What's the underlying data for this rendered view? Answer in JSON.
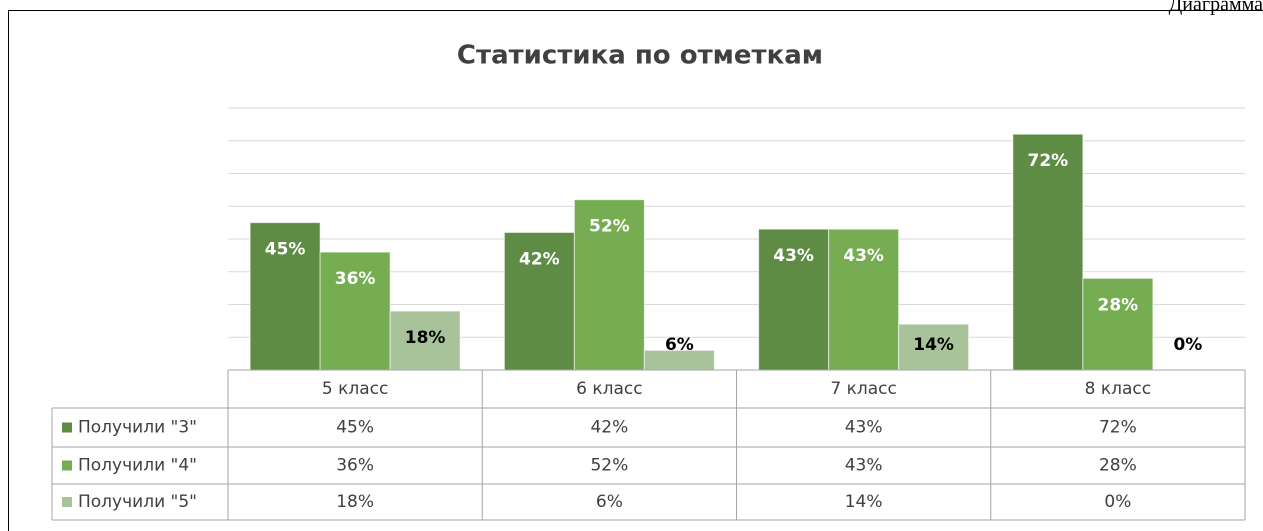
{
  "caption": "Диаграмма",
  "chart_data": {
    "type": "bar",
    "title": "Статистика по отметкам",
    "categories": [
      "5 класс",
      "6 класс",
      "7 класс",
      "8 класс"
    ],
    "series": [
      {
        "name": "Получили \"3\"",
        "color": "#5e8c45",
        "values": [
          45,
          42,
          43,
          72
        ],
        "value_labels": [
          "45%",
          "42%",
          "43%",
          "72%"
        ]
      },
      {
        "name": "Получили \"4\"",
        "color": "#76ad52",
        "values": [
          36,
          52,
          43,
          28
        ],
        "value_labels": [
          "36%",
          "52%",
          "43%",
          "28%"
        ]
      },
      {
        "name": "Получили \"5\"",
        "color": "#a8c39a",
        "values": [
          18,
          6,
          14,
          0
        ],
        "value_labels": [
          "18%",
          "6%",
          "14%",
          "0%"
        ]
      }
    ],
    "ylim": [
      0,
      80
    ],
    "yticks": [
      0,
      10,
      20,
      30,
      40,
      50,
      60,
      70,
      80
    ],
    "grid": true,
    "data_table": true
  }
}
